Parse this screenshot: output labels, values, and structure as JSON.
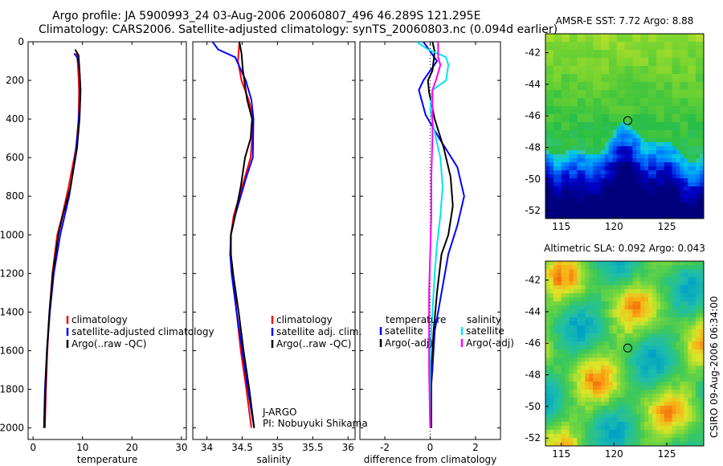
{
  "header": {
    "line1": "Argo profile: JA 5900993_24 03-Aug-2006 20060807_496 46.289S 121.295E",
    "line2": "Climatology: CARS2006. Satellite-adjusted climatology: synTS_20060803.nc (0.094d earlier)"
  },
  "colors": {
    "climatology": "#ff0000",
    "satellite": "#0000ff",
    "argo": "#000000",
    "sal_sat": "#00e5ee",
    "sal_argo": "#ff00ff"
  },
  "depth_ticks": [
    "0",
    "200",
    "400",
    "600",
    "800",
    "1000",
    "1200",
    "1400",
    "1600",
    "1800",
    "2000"
  ],
  "chart_data": [
    {
      "type": "line",
      "xlabel": "temperature",
      "ylabel": "",
      "xlim": [
        -1,
        31
      ],
      "ylim": [
        2060,
        0
      ],
      "y_reversed": true,
      "xticks": [
        "0",
        "10",
        "20",
        "30"
      ],
      "legend": [
        "climatology",
        "satellite-adjusted climatology",
        "Argo(..raw -QC)"
      ],
      "series": [
        {
          "name": "climatology",
          "color": "#ff0000",
          "points": [
            [
              8.8,
              60
            ],
            [
              9.0,
              100
            ],
            [
              9.2,
              180
            ],
            [
              9.3,
              260
            ],
            [
              9.2,
              400
            ],
            [
              8.7,
              550
            ],
            [
              7.2,
              750
            ],
            [
              5.9,
              900
            ],
            [
              4.9,
              1000
            ],
            [
              3.9,
              1200
            ],
            [
              3.3,
              1400
            ],
            [
              2.9,
              1600
            ],
            [
              2.6,
              1800
            ],
            [
              2.4,
              2000
            ]
          ]
        },
        {
          "name": "satellite-adjusted climatology",
          "color": "#0000ff",
          "points": [
            [
              8.3,
              60
            ],
            [
              8.9,
              80
            ],
            [
              9.3,
              120
            ],
            [
              9.5,
              200
            ],
            [
              9.5,
              300
            ],
            [
              9.1,
              450
            ],
            [
              8.5,
              600
            ],
            [
              7.3,
              800
            ],
            [
              5.5,
              1000
            ],
            [
              4.2,
              1200
            ],
            [
              3.4,
              1400
            ],
            [
              2.8,
              1600
            ],
            [
              2.4,
              1800
            ],
            [
              2.2,
              2000
            ]
          ]
        },
        {
          "name": "Argo(..raw -QC)",
          "color": "#000000",
          "points": [
            [
              8.5,
              40
            ],
            [
              9.2,
              70
            ],
            [
              9.4,
              150
            ],
            [
              9.6,
              250
            ],
            [
              9.4,
              400
            ],
            [
              8.9,
              550
            ],
            [
              7.6,
              750
            ],
            [
              6.0,
              900
            ],
            [
              5.1,
              1000
            ],
            [
              4.0,
              1200
            ],
            [
              3.3,
              1400
            ],
            [
              2.8,
              1600
            ],
            [
              2.5,
              1800
            ],
            [
              2.3,
              2000
            ]
          ]
        }
      ]
    },
    {
      "type": "line",
      "xlabel": "salinity",
      "ylabel": "",
      "xlim": [
        33.8,
        36.1
      ],
      "ylim": [
        2060,
        0
      ],
      "y_reversed": true,
      "xticks": [
        "34",
        "34.5",
        "35",
        "35.5",
        "36"
      ],
      "legend": [
        "climatology",
        "satellite adj. clim.",
        "Argo(..raw -QC)"
      ],
      "annotation": [
        "J-ARGO",
        "PI: Nobuyuki Shikama"
      ],
      "series": [
        {
          "name": "climatology",
          "color": "#ff0000",
          "points": [
            [
              34.46,
              0
            ],
            [
              34.44,
              100
            ],
            [
              34.49,
              200
            ],
            [
              34.59,
              300
            ],
            [
              34.66,
              400
            ],
            [
              34.62,
              600
            ],
            [
              34.54,
              700
            ],
            [
              34.46,
              800
            ],
            [
              34.38,
              900
            ],
            [
              34.34,
              1000
            ],
            [
              34.34,
              1100
            ],
            [
              34.37,
              1200
            ],
            [
              34.42,
              1400
            ],
            [
              34.48,
              1600
            ],
            [
              34.56,
              1800
            ],
            [
              34.63,
              2000
            ]
          ]
        },
        {
          "name": "satellite adj. clim.",
          "color": "#0000ff",
          "points": [
            [
              34.08,
              0
            ],
            [
              34.16,
              40
            ],
            [
              34.4,
              80
            ],
            [
              34.55,
              200
            ],
            [
              34.63,
              300
            ],
            [
              34.66,
              400
            ],
            [
              34.65,
              600
            ],
            [
              34.56,
              700
            ],
            [
              34.48,
              800
            ],
            [
              34.4,
              900
            ],
            [
              34.34,
              1000
            ],
            [
              34.33,
              1100
            ],
            [
              34.35,
              1200
            ],
            [
              34.42,
              1400
            ],
            [
              34.5,
              1600
            ],
            [
              34.58,
              1800
            ],
            [
              34.67,
              2000
            ]
          ]
        },
        {
          "name": "Argo(..raw -QC)",
          "color": "#000000",
          "points": [
            [
              34.46,
              0
            ],
            [
              34.49,
              60
            ],
            [
              34.51,
              150
            ],
            [
              34.57,
              300
            ],
            [
              34.64,
              400
            ],
            [
              34.62,
              500
            ],
            [
              34.54,
              600
            ],
            [
              34.48,
              750
            ],
            [
              34.4,
              900
            ],
            [
              34.34,
              1000
            ],
            [
              34.34,
              1100
            ],
            [
              34.37,
              1200
            ],
            [
              34.45,
              1400
            ],
            [
              34.52,
              1600
            ],
            [
              34.6,
              1800
            ],
            [
              34.67,
              2000
            ]
          ]
        }
      ]
    },
    {
      "type": "line",
      "xlabel": "difference from climatology",
      "ylabel": "",
      "xlim": [
        -3.1,
        3.1
      ],
      "ylim": [
        2060,
        0
      ],
      "y_reversed": true,
      "xticks": [
        "-2",
        "0",
        "2"
      ],
      "legend": [
        {
          "group": "temperature",
          "items": [
            "satellite",
            "Argo(-adj)"
          ]
        },
        {
          "group": "salinity",
          "items": [
            "satellite",
            "Argo(-adj)"
          ]
        }
      ],
      "series": [
        {
          "name": "temperature satellite",
          "color": "#0000ff",
          "points": [
            [
              -0.3,
              0
            ],
            [
              0.0,
              50
            ],
            [
              0.3,
              100
            ],
            [
              -0.3,
              200
            ],
            [
              -0.5,
              250
            ],
            [
              -0.2,
              380
            ],
            [
              0.4,
              500
            ],
            [
              1.2,
              650
            ],
            [
              1.5,
              800
            ],
            [
              1.2,
              950
            ],
            [
              0.8,
              1100
            ],
            [
              0.5,
              1300
            ],
            [
              0.2,
              1500
            ],
            [
              0.1,
              1700
            ],
            [
              0.0,
              1850
            ],
            [
              0.05,
              2000
            ]
          ]
        },
        {
          "name": "temperature Argo(-adj)",
          "color": "#000000",
          "points": [
            [
              0.1,
              0
            ],
            [
              0.2,
              50
            ],
            [
              0.1,
              150
            ],
            [
              -0.1,
              200
            ],
            [
              -0.05,
              260
            ],
            [
              0.2,
              400
            ],
            [
              0.6,
              550
            ],
            [
              0.9,
              700
            ],
            [
              1.0,
              850
            ],
            [
              0.8,
              1000
            ],
            [
              0.5,
              1100
            ],
            [
              0.3,
              1300
            ],
            [
              0.15,
              1500
            ],
            [
              0.05,
              1700
            ],
            [
              0.05,
              2000
            ]
          ]
        },
        {
          "name": "salinity satellite",
          "color": "#00e5ee",
          "points": [
            [
              -0.6,
              0
            ],
            [
              -0.1,
              40
            ],
            [
              0.7,
              80
            ],
            [
              0.8,
              120
            ],
            [
              0.7,
              200
            ],
            [
              0.1,
              250
            ],
            [
              0.0,
              350
            ],
            [
              0.25,
              500
            ],
            [
              0.45,
              600
            ],
            [
              0.55,
              750
            ],
            [
              0.45,
              900
            ],
            [
              0.3,
              1050
            ],
            [
              0.2,
              1200
            ],
            [
              0.1,
              1400
            ],
            [
              0.0,
              1600
            ],
            [
              0.0,
              2000
            ]
          ]
        },
        {
          "name": "salinity Argo(-adj)",
          "color": "#ff00ff",
          "points": [
            [
              0.35,
              0
            ],
            [
              0.35,
              80
            ],
            [
              0.45,
              120
            ],
            [
              0.25,
              200
            ],
            [
              0.1,
              250
            ],
            [
              0.1,
              320
            ],
            [
              0.1,
              500
            ],
            [
              0.05,
              700
            ],
            [
              0.05,
              900
            ],
            [
              0.0,
              1100
            ],
            [
              -0.05,
              1300
            ],
            [
              -0.05,
              1500
            ],
            [
              -0.05,
              1700
            ],
            [
              0.0,
              2000
            ]
          ]
        }
      ]
    },
    {
      "type": "heatmap",
      "title": "AMSR-E SST: 7.72 Argo: 8.88",
      "xticks": [
        "115",
        "120",
        "125"
      ],
      "yticks": [
        "-42",
        "-44",
        "-46",
        "-48",
        "-50",
        "-52"
      ],
      "xlim": [
        113.5,
        128.5
      ],
      "ylim": [
        -52.5,
        -40.8
      ],
      "marker": [
        121.3,
        -46.3
      ]
    },
    {
      "type": "heatmap",
      "title": "Altimetric SLA: 0.092 Argo: 0.043",
      "xticks": [
        "115",
        "120",
        "125"
      ],
      "yticks": [
        "-42",
        "-44",
        "-46",
        "-48",
        "-50",
        "-52"
      ],
      "xlim": [
        113.5,
        128.5
      ],
      "ylim": [
        -52.5,
        -40.8
      ],
      "marker": [
        121.3,
        -46.3
      ]
    }
  ],
  "side_credit": "CSIRO 09-Aug-2006 06:34:00"
}
